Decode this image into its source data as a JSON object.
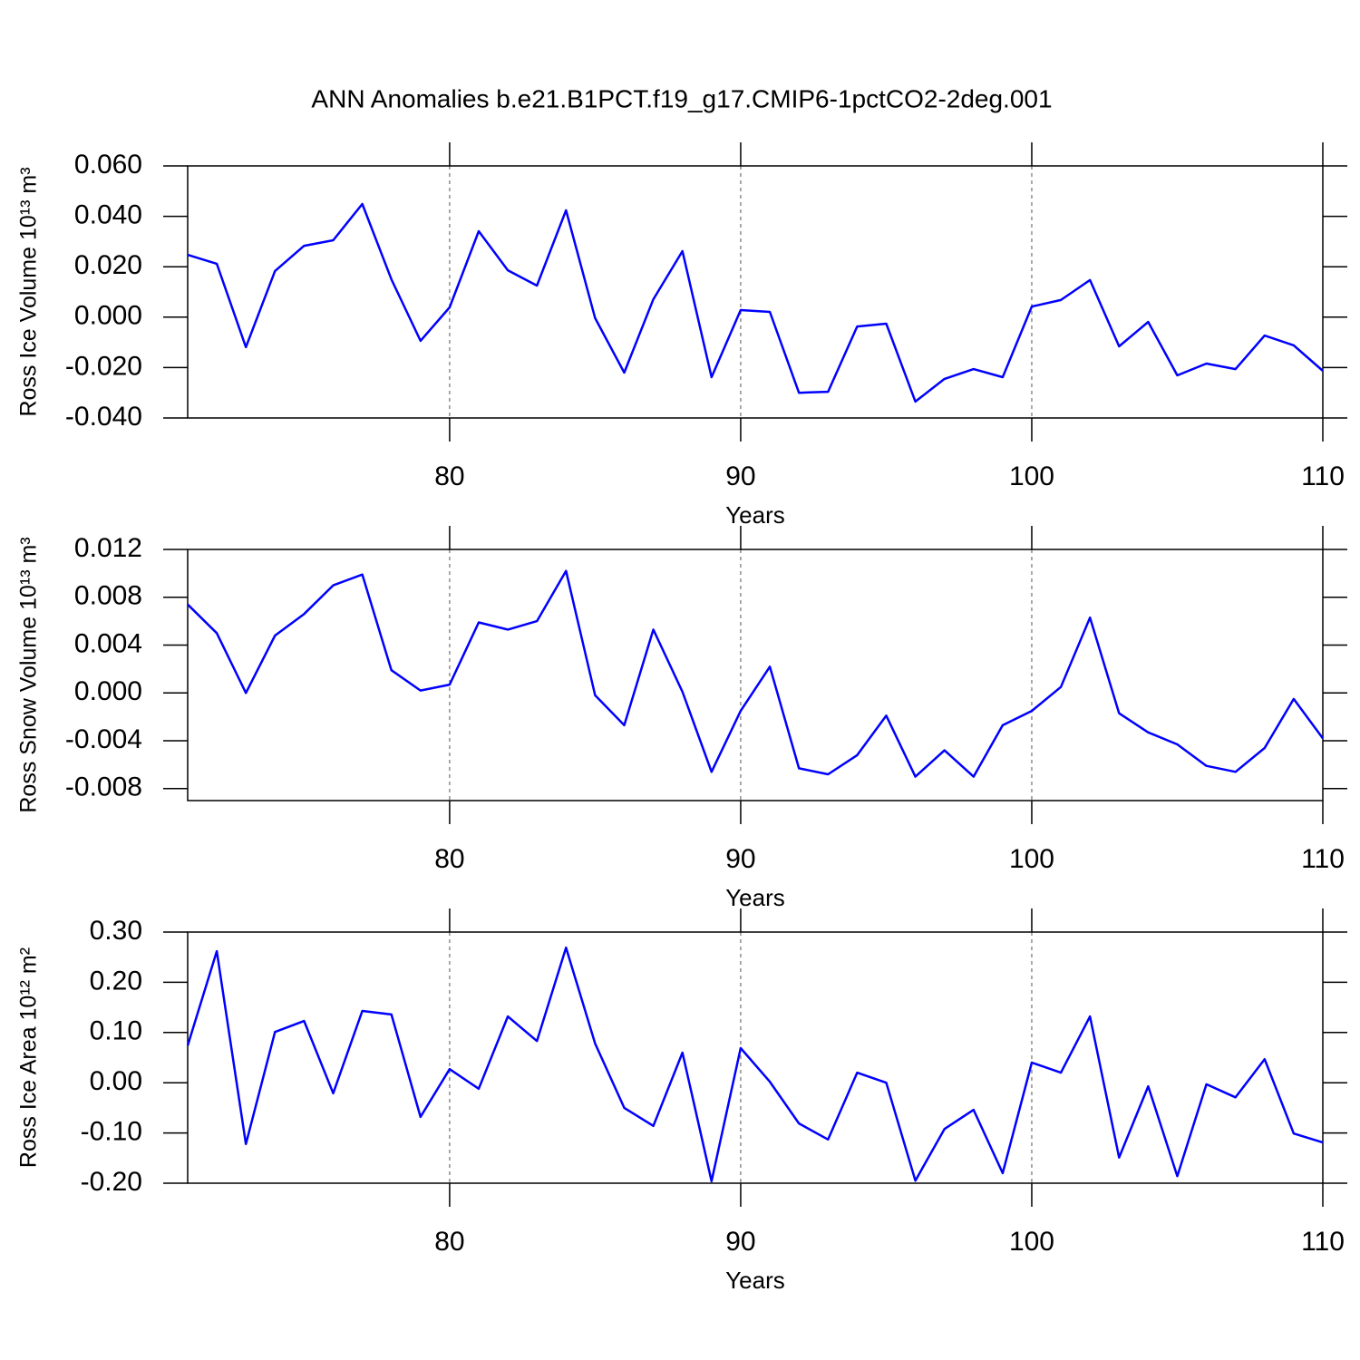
{
  "chart_data": [
    {
      "type": "line",
      "title": "ANN Anomalies b.e21.B1PCT.f19_g17.CMIP6-1pctCO2-2deg.001",
      "xlabel": "Years",
      "ylabel": "Ross Ice Volume 10¹³ m³",
      "x": [
        71,
        72,
        73,
        74,
        75,
        76,
        77,
        78,
        79,
        80,
        81,
        82,
        83,
        84,
        85,
        86,
        87,
        88,
        89,
        90,
        91,
        92,
        93,
        94,
        95,
        96,
        97,
        98,
        99,
        100,
        101,
        102,
        103,
        104,
        105,
        106,
        107,
        108,
        109,
        110
      ],
      "series": [
        {
          "color": "#0000ff",
          "values": [
            0.0247,
            0.0212,
            -0.0119,
            0.0183,
            0.0283,
            0.0305,
            0.0449,
            0.015,
            -0.0094,
            0.0039,
            0.0341,
            0.0186,
            0.0125,
            0.0424,
            -0.0004,
            -0.022,
            0.0071,
            0.0262,
            -0.0238,
            0.0028,
            0.0021,
            -0.03,
            -0.0296,
            -0.0037,
            -0.0026,
            -0.0335,
            -0.0245,
            -0.0206,
            -0.0238,
            0.0042,
            0.0068,
            0.0147,
            -0.0116,
            -0.0019,
            -0.0231,
            -0.0184,
            -0.0206,
            -0.0073,
            -0.0112,
            -0.0213
          ]
        }
      ],
      "xlim": [
        71,
        110
      ],
      "xticks": [
        80,
        90,
        100,
        110
      ],
      "ylim": [
        -0.04,
        0.06
      ],
      "yticks": [
        {
          "value": 0.06,
          "label": "0.060"
        },
        {
          "value": 0.04,
          "label": "0.040"
        },
        {
          "value": 0.02,
          "label": "0.020"
        },
        {
          "value": 0,
          "label": "0.000"
        },
        {
          "value": -0.02,
          "label": "-0.020"
        },
        {
          "value": -0.04,
          "label": "-0.040"
        }
      ],
      "grid": true
    },
    {
      "type": "line",
      "xlabel": "Years",
      "ylabel": "Ross Snow Volume 10¹³ m³",
      "x": [
        71,
        72,
        73,
        74,
        75,
        76,
        77,
        78,
        79,
        80,
        81,
        82,
        83,
        84,
        85,
        86,
        87,
        88,
        89,
        90,
        91,
        92,
        93,
        94,
        95,
        96,
        97,
        98,
        99,
        100,
        101,
        102,
        103,
        104,
        105,
        106,
        107,
        108,
        109,
        110
      ],
      "series": [
        {
          "color": "#0000ff",
          "values": [
            0.0074,
            0.005,
            0.0,
            0.0048,
            0.0066,
            0.009,
            0.0099,
            0.0019,
            0.0002,
            0.0007,
            0.0059,
            0.0053,
            0.006,
            0.0102,
            -0.0002,
            -0.0027,
            0.0053,
            0.0001,
            -0.0066,
            -0.0015,
            0.0022,
            -0.0063,
            -0.0068,
            -0.0052,
            -0.0019,
            -0.007,
            -0.0048,
            -0.007,
            -0.0027,
            -0.0015,
            0.0005,
            0.0063,
            -0.0017,
            -0.0033,
            -0.0043,
            -0.0061,
            -0.0066,
            -0.0046,
            -0.0005,
            -0.0038
          ]
        }
      ],
      "xlim": [
        71,
        110
      ],
      "xticks": [
        80,
        90,
        100,
        110
      ],
      "ylim": [
        -0.009,
        0.012
      ],
      "yticks": [
        {
          "value": 0.012,
          "label": "0.012"
        },
        {
          "value": 0.008,
          "label": "0.008"
        },
        {
          "value": 0.004,
          "label": "0.004"
        },
        {
          "value": 0,
          "label": "0.000"
        },
        {
          "value": -0.004,
          "label": "-0.004"
        },
        {
          "value": -0.008,
          "label": "-0.008"
        }
      ],
      "grid": true
    },
    {
      "type": "line",
      "xlabel": "Years",
      "ylabel": "Ross Ice Area 10¹² m²",
      "x": [
        71,
        72,
        73,
        74,
        75,
        76,
        77,
        78,
        79,
        80,
        81,
        82,
        83,
        84,
        85,
        86,
        87,
        88,
        89,
        90,
        91,
        92,
        93,
        94,
        95,
        96,
        97,
        98,
        99,
        100,
        101,
        102,
        103,
        104,
        105,
        106,
        107,
        108,
        109,
        110
      ],
      "series": [
        {
          "color": "#0000ff",
          "values": [
            0.074,
            0.262,
            -0.122,
            0.101,
            0.123,
            -0.021,
            0.143,
            0.136,
            -0.068,
            0.027,
            -0.012,
            0.132,
            0.083,
            0.269,
            0.078,
            -0.05,
            -0.086,
            0.06,
            -0.196,
            0.069,
            0.002,
            -0.081,
            -0.113,
            0.02,
            0.0,
            -0.195,
            -0.092,
            -0.054,
            -0.18,
            0.04,
            0.02,
            0.132,
            -0.149,
            -0.007,
            -0.186,
            -0.003,
            -0.029,
            0.047,
            -0.101,
            -0.119
          ]
        }
      ],
      "xlim": [
        71,
        110
      ],
      "xticks": [
        80,
        90,
        100,
        110
      ],
      "ylim": [
        -0.2,
        0.3
      ],
      "yticks": [
        {
          "value": 0.3,
          "label": "0.30"
        },
        {
          "value": 0.2,
          "label": "0.20"
        },
        {
          "value": 0.1,
          "label": "0.10"
        },
        {
          "value": 0,
          "label": "0.00"
        },
        {
          "value": -0.1,
          "label": "-0.10"
        },
        {
          "value": -0.2,
          "label": "-0.20"
        }
      ],
      "grid": true
    }
  ]
}
